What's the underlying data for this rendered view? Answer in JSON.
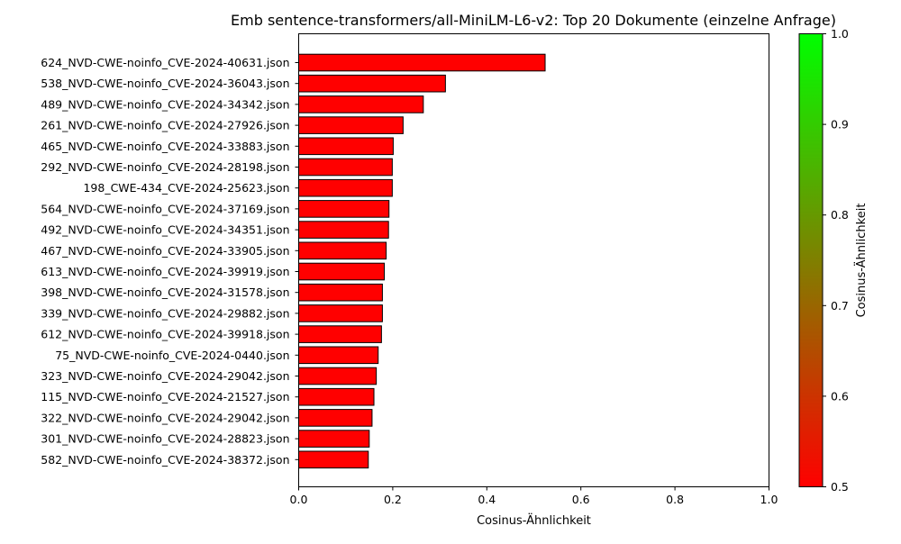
{
  "chart_data": {
    "type": "bar",
    "orientation": "horizontal",
    "title": "Emb sentence-transformers/all-MiniLM-L6-v2: Top 20 Dokumente (einzelne Anfrage)",
    "xlabel": "Cosinus-Ähnlichkeit",
    "ylabel": "",
    "xlim": [
      0,
      1.0
    ],
    "xticks": [
      "0.0",
      "0.2",
      "0.4",
      "0.6",
      "0.8",
      "1.0"
    ],
    "categories": [
      "624_NVD-CWE-noinfo_CVE-2024-40631.json",
      "538_NVD-CWE-noinfo_CVE-2024-36043.json",
      "489_NVD-CWE-noinfo_CVE-2024-34342.json",
      "261_NVD-CWE-noinfo_CVE-2024-27926.json",
      "465_NVD-CWE-noinfo_CVE-2024-33883.json",
      "292_NVD-CWE-noinfo_CVE-2024-28198.json",
      "198_CWE-434_CVE-2024-25623.json",
      "564_NVD-CWE-noinfo_CVE-2024-37169.json",
      "492_NVD-CWE-noinfo_CVE-2024-34351.json",
      "467_NVD-CWE-noinfo_CVE-2024-33905.json",
      "613_NVD-CWE-noinfo_CVE-2024-39919.json",
      "398_NVD-CWE-noinfo_CVE-2024-31578.json",
      "339_NVD-CWE-noinfo_CVE-2024-29882.json",
      "612_NVD-CWE-noinfo_CVE-2024-39918.json",
      "75_NVD-CWE-noinfo_CVE-2024-0440.json",
      "323_NVD-CWE-noinfo_CVE-2024-29042.json",
      "115_NVD-CWE-noinfo_CVE-2024-21527.json",
      "322_NVD-CWE-noinfo_CVE-2024-29042.json",
      "301_NVD-CWE-noinfo_CVE-2024-28823.json",
      "582_NVD-CWE-noinfo_CVE-2024-38372.json"
    ],
    "values": [
      0.524,
      0.312,
      0.265,
      0.222,
      0.201,
      0.199,
      0.199,
      0.192,
      0.191,
      0.186,
      0.182,
      0.178,
      0.178,
      0.176,
      0.169,
      0.165,
      0.16,
      0.156,
      0.15,
      0.148
    ],
    "bar_color": "#ff0000",
    "bar_edge_color": "#000000",
    "colorbar": {
      "label": "Cosinus-Ähnlichkeit",
      "range": [
        0.5,
        1.0
      ],
      "ticks": [
        "0.5",
        "0.6",
        "0.7",
        "0.8",
        "0.9",
        "1.0"
      ],
      "color_low": "#ff0000",
      "color_high": "#00ff00"
    },
    "grid": false
  }
}
